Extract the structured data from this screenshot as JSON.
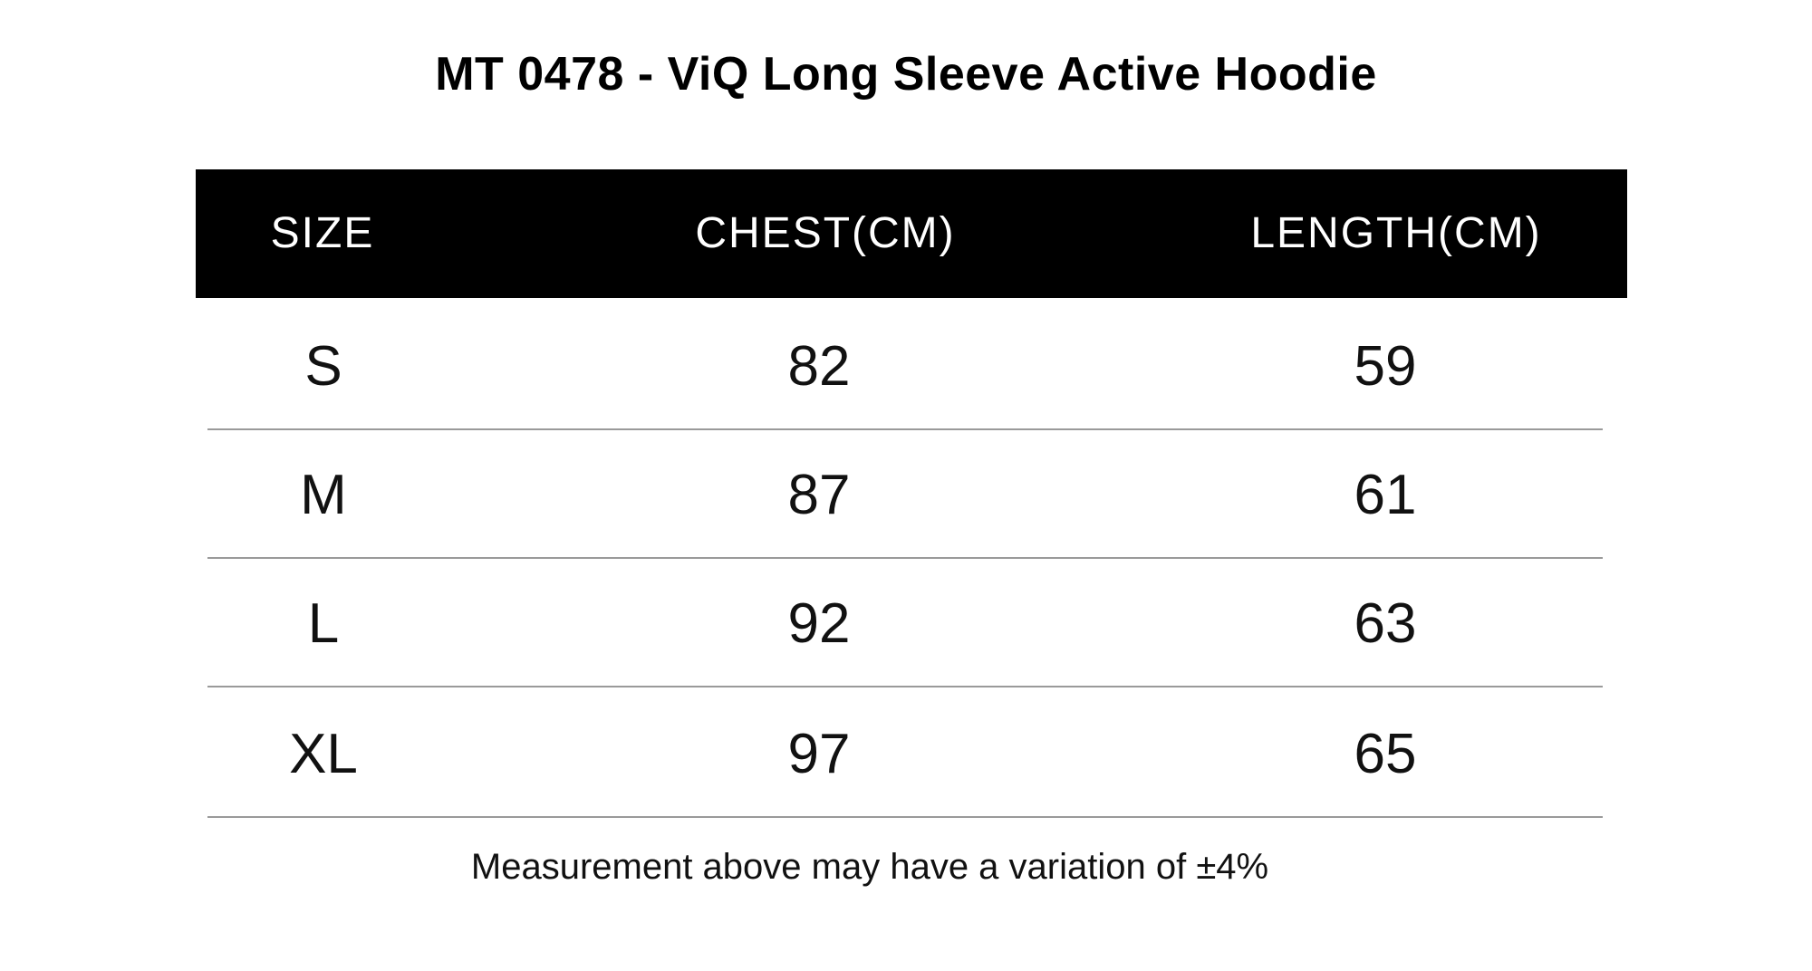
{
  "title": "MT 0478 - ViQ Long Sleeve Active Hoodie",
  "table": {
    "headers": [
      "SIZE",
      "CHEST(CM)",
      "LENGTH(CM)"
    ],
    "rows": [
      [
        "S",
        "82",
        "59"
      ],
      [
        "M",
        "87",
        "61"
      ],
      [
        "L",
        "92",
        "63"
      ],
      [
        "XL",
        "97",
        "65"
      ]
    ]
  },
  "footnote": "Measurement above may have a variation of ±4%",
  "colors": {
    "header_background": "#000000",
    "header_text": "#ffffff",
    "row_divider": "#9a9a9a"
  }
}
